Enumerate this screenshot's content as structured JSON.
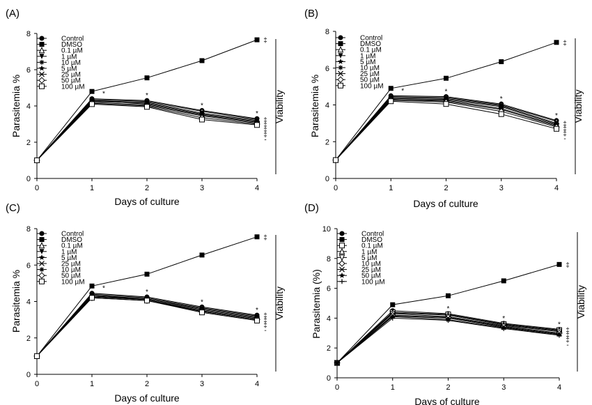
{
  "chart_data": [
    {
      "type": "line",
      "panel": "(A)",
      "xlabel": "Days of culture",
      "ylabel": "Parasitemia  %",
      "side_label": "Viability",
      "xlim": [
        0,
        4
      ],
      "ylim": [
        0,
        8
      ],
      "x_ticks": [
        "0",
        "1",
        "2",
        "3",
        "4"
      ],
      "y_ticks": [
        "0",
        "2",
        "4",
        "6",
        "8"
      ],
      "x": [
        0,
        1,
        2,
        3,
        4
      ],
      "series": [
        {
          "name": "Control",
          "marker": "circle-filled",
          "values": [
            1,
            4.4,
            4.3,
            3.75,
            3.3
          ]
        },
        {
          "name": "DMSO",
          "marker": "square-filled",
          "values": [
            1,
            4.8,
            5.55,
            6.5,
            7.65
          ]
        },
        {
          "name": "0.1 µM",
          "marker": "triangle-up-open",
          "values": [
            1,
            4.35,
            4.25,
            3.7,
            3.25
          ]
        },
        {
          "name": "1 µM",
          "marker": "triangle-down-filled",
          "values": [
            1,
            4.3,
            4.2,
            3.6,
            3.2
          ]
        },
        {
          "name": "10 µM",
          "marker": "star",
          "values": [
            1,
            4.25,
            4.15,
            3.55,
            3.15
          ]
        },
        {
          "name": "5 µM",
          "marker": "star-filled",
          "values": [
            1,
            4.3,
            4.1,
            3.5,
            3.1
          ]
        },
        {
          "name": "25 µM",
          "marker": "x",
          "values": [
            1,
            4.2,
            4.05,
            3.45,
            3.05
          ]
        },
        {
          "name": "50 µM",
          "marker": "diamond-open",
          "values": [
            1,
            4.15,
            4.0,
            3.35,
            3.0
          ]
        },
        {
          "name": "100 µM",
          "marker": "square-open",
          "values": [
            1,
            4.1,
            3.95,
            3.25,
            2.95
          ]
        }
      ],
      "stars": {
        "x": [
          1,
          2,
          3,
          4
        ],
        "text": "*"
      },
      "dmso_marks": "‡",
      "group_marks": [
        "‡",
        "‡",
        "‡",
        "‡",
        "-"
      ]
    },
    {
      "type": "line",
      "panel": "(B)",
      "xlabel": "Days of culture",
      "ylabel": "Parasitemia  %",
      "side_label": "Viability",
      "xlim": [
        0,
        4
      ],
      "ylim": [
        0,
        8
      ],
      "x_ticks": [
        "0",
        "1",
        "2",
        "3",
        "4"
      ],
      "y_ticks": [
        "0",
        "2",
        "4",
        "6",
        "8"
      ],
      "x": [
        0,
        1,
        2,
        3,
        4
      ],
      "series": [
        {
          "name": "Control",
          "marker": "circle-filled",
          "values": [
            1,
            4.5,
            4.45,
            4.05,
            3.15
          ]
        },
        {
          "name": "DMSO",
          "marker": "square-filled",
          "values": [
            1,
            4.9,
            5.45,
            6.35,
            7.4
          ]
        },
        {
          "name": "0.1 µM",
          "marker": "triangle-up-open",
          "values": [
            1,
            4.45,
            4.4,
            4.0,
            3.1
          ]
        },
        {
          "name": "1 µM",
          "marker": "triangle-down-filled",
          "values": [
            1,
            4.4,
            4.35,
            3.95,
            3.0
          ]
        },
        {
          "name": "5 µM",
          "marker": "star-filled",
          "values": [
            1,
            4.35,
            4.3,
            3.9,
            2.95
          ]
        },
        {
          "name": "10 µM",
          "marker": "star",
          "values": [
            1,
            4.3,
            4.25,
            3.8,
            2.9
          ]
        },
        {
          "name": "25 µM",
          "marker": "x",
          "values": [
            1,
            4.3,
            4.2,
            3.75,
            2.85
          ]
        },
        {
          "name": "50 µM",
          "marker": "diamond-open",
          "values": [
            1,
            4.25,
            4.15,
            3.65,
            2.8
          ]
        },
        {
          "name": "100 µM",
          "marker": "square-open",
          "values": [
            1,
            4.2,
            4.05,
            3.5,
            2.7
          ]
        }
      ],
      "stars": {
        "x": [
          1,
          2,
          3,
          4
        ],
        "text": "*"
      },
      "dmso_marks": "‡",
      "group_marks": [
        "‡",
        "‡",
        "‡",
        "-"
      ]
    },
    {
      "type": "line",
      "panel": "(C)",
      "xlabel": "Days of culture",
      "ylabel": "Parasitemia  %",
      "side_label": "Viability",
      "xlim": [
        0,
        4
      ],
      "ylim": [
        0,
        8
      ],
      "x_ticks": [
        "0",
        "1",
        "2",
        "3",
        "4"
      ],
      "y_ticks": [
        "0",
        "2",
        "4",
        "6",
        "8"
      ],
      "x": [
        0,
        1,
        2,
        3,
        4
      ],
      "series": [
        {
          "name": "Control",
          "marker": "circle-filled",
          "values": [
            1,
            4.45,
            4.25,
            3.7,
            3.25
          ]
        },
        {
          "name": "DMSO",
          "marker": "square-filled",
          "values": [
            1,
            4.85,
            5.5,
            6.55,
            7.55
          ]
        },
        {
          "name": "0.1 µM",
          "marker": "triangle-up-open",
          "values": [
            1,
            4.4,
            4.2,
            3.65,
            3.2
          ]
        },
        {
          "name": "1 µM",
          "marker": "triangle-down-filled",
          "values": [
            1,
            4.35,
            4.15,
            3.6,
            3.15
          ]
        },
        {
          "name": "5 µM",
          "marker": "star-filled",
          "values": [
            1,
            4.3,
            4.15,
            3.55,
            3.1
          ]
        },
        {
          "name": "25 µM",
          "marker": "x",
          "values": [
            1,
            4.3,
            4.1,
            3.5,
            3.05
          ]
        },
        {
          "name": "10 µM",
          "marker": "star",
          "values": [
            1,
            4.25,
            4.1,
            3.45,
            3.0
          ]
        },
        {
          "name": "50 µM",
          "marker": "diamond-open",
          "values": [
            1,
            4.2,
            4.05,
            3.45,
            3.0
          ]
        },
        {
          "name": "100 µM",
          "marker": "square-open",
          "values": [
            1,
            4.2,
            4.05,
            3.4,
            2.95
          ]
        }
      ],
      "stars": {
        "x": [
          1,
          2,
          3,
          4
        ],
        "text": "*"
      },
      "dmso_marks": "‡",
      "group_marks": [
        "‡",
        "‡",
        "‡",
        "-"
      ]
    },
    {
      "type": "line",
      "panel": "(D)",
      "xlabel": "Days of culture",
      "ylabel": "Parasitemia (%)",
      "side_label": "Viability",
      "xlim": [
        0,
        4
      ],
      "ylim": [
        0,
        10
      ],
      "x_ticks": [
        "0",
        "1",
        "2",
        "3",
        "4"
      ],
      "y_ticks": [
        "0",
        "2",
        "4",
        "6",
        "8",
        "10"
      ],
      "x": [
        0,
        1,
        2,
        3,
        4
      ],
      "series": [
        {
          "name": "Control",
          "marker": "circle-filled",
          "values": [
            1,
            4.5,
            4.3,
            3.65,
            3.25
          ]
        },
        {
          "name": "DMSO",
          "marker": "square-filled",
          "values": [
            1,
            4.9,
            5.5,
            6.5,
            7.6
          ]
        },
        {
          "name": "0.1 µM",
          "marker": "square-open",
          "values": [
            1,
            4.4,
            4.25,
            3.6,
            3.2
          ]
        },
        {
          "name": "1 µM",
          "marker": "triangle-up-open",
          "values": [
            1,
            4.35,
            4.2,
            3.55,
            3.15
          ]
        },
        {
          "name": "5 µM",
          "marker": "triangle-down-open",
          "values": [
            1,
            4.3,
            4.1,
            3.5,
            3.1
          ]
        },
        {
          "name": "10 µM",
          "marker": "diamond-open",
          "values": [
            1,
            4.2,
            4.05,
            3.45,
            3.0
          ]
        },
        {
          "name": "25 µM",
          "marker": "x",
          "values": [
            1,
            4.15,
            4.0,
            3.4,
            2.95
          ]
        },
        {
          "name": "50 µM",
          "marker": "star-filled",
          "values": [
            1,
            4.1,
            3.9,
            3.35,
            2.9
          ]
        },
        {
          "name": "100 µM",
          "marker": "plus",
          "values": [
            1,
            4.0,
            3.85,
            3.3,
            2.85
          ]
        }
      ],
      "stars": {
        "x": [
          2,
          3,
          4
        ],
        "text": "*"
      },
      "dmso_marks": "‡",
      "group_marks": [
        "‡",
        "‡",
        "‡",
        "-"
      ]
    }
  ]
}
